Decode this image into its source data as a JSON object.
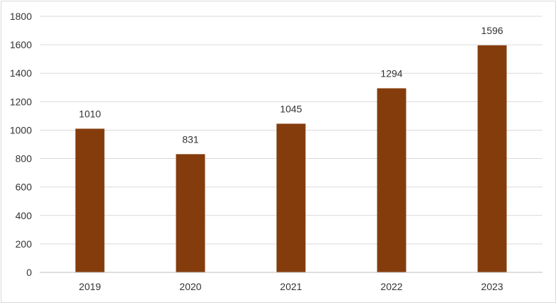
{
  "chart_data": {
    "type": "bar",
    "categories": [
      "2019",
      "2020",
      "2021",
      "2022",
      "2023"
    ],
    "values": [
      1010,
      831,
      1045,
      1294,
      1596
    ],
    "data_labels": [
      "1010",
      "831",
      "1045",
      "1294",
      "1596"
    ],
    "title": "",
    "xlabel": "",
    "ylabel": "",
    "ylim": [
      0,
      1800
    ],
    "yticks": [
      0,
      200,
      400,
      600,
      800,
      1000,
      1200,
      1400,
      1600,
      1800
    ],
    "ytick_labels": [
      "0",
      "200",
      "400",
      "600",
      "800",
      "1000",
      "1200",
      "1400",
      "1600",
      "1800"
    ],
    "grid": true,
    "legend": "none",
    "bar_color": "#843C0C",
    "grid_color": "#d9d9d9"
  }
}
